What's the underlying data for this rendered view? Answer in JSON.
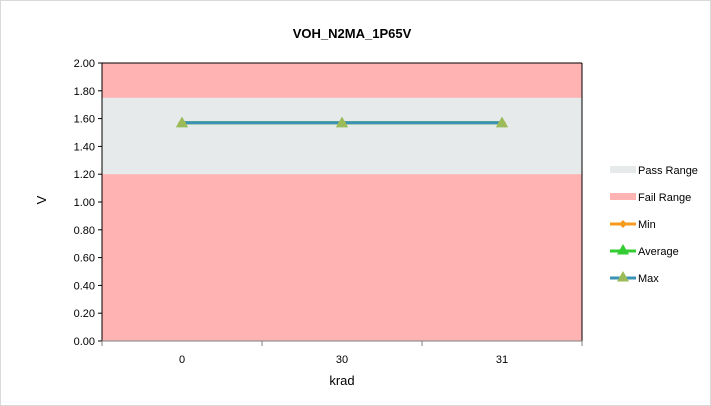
{
  "chart_data": {
    "type": "line",
    "title": "VOH_N2MA_1P65V",
    "xlabel": "krad",
    "ylabel": "V",
    "categories": [
      "0",
      "30",
      "31"
    ],
    "ylim": [
      0,
      2
    ],
    "yticks": [
      "0.00",
      "0.20",
      "0.40",
      "0.60",
      "0.80",
      "1.00",
      "1.20",
      "1.40",
      "1.60",
      "1.80",
      "2.00"
    ],
    "pass_range": [
      1.2,
      1.75
    ],
    "fail_range": [
      0,
      2
    ],
    "series": [
      {
        "name": "Min",
        "values": [
          1.57,
          1.57,
          1.57
        ],
        "color": "#f79a1e",
        "marker": "diamond"
      },
      {
        "name": "Average",
        "values": [
          1.57,
          1.57,
          1.57
        ],
        "color": "#33cc33",
        "marker": "triangle"
      },
      {
        "name": "Max",
        "values": [
          1.57,
          1.57,
          1.57
        ],
        "color": "#3a93b5",
        "marker": "triangle"
      }
    ],
    "legend": [
      {
        "name": "Pass Range",
        "kind": "area",
        "color": "#e6eaea"
      },
      {
        "name": "Fail Range",
        "kind": "area",
        "color": "#ffb3b3"
      },
      {
        "name": "Min",
        "kind": "line",
        "color": "#f79a1e",
        "marker": "diamond"
      },
      {
        "name": "Average",
        "kind": "line",
        "color": "#33cc33",
        "marker": "triangle"
      },
      {
        "name": "Max",
        "kind": "line",
        "color": "#3a93b5",
        "marker": "triangle"
      }
    ],
    "marker_fill": "#9bbb59",
    "legend_position": "right",
    "grid": false
  }
}
